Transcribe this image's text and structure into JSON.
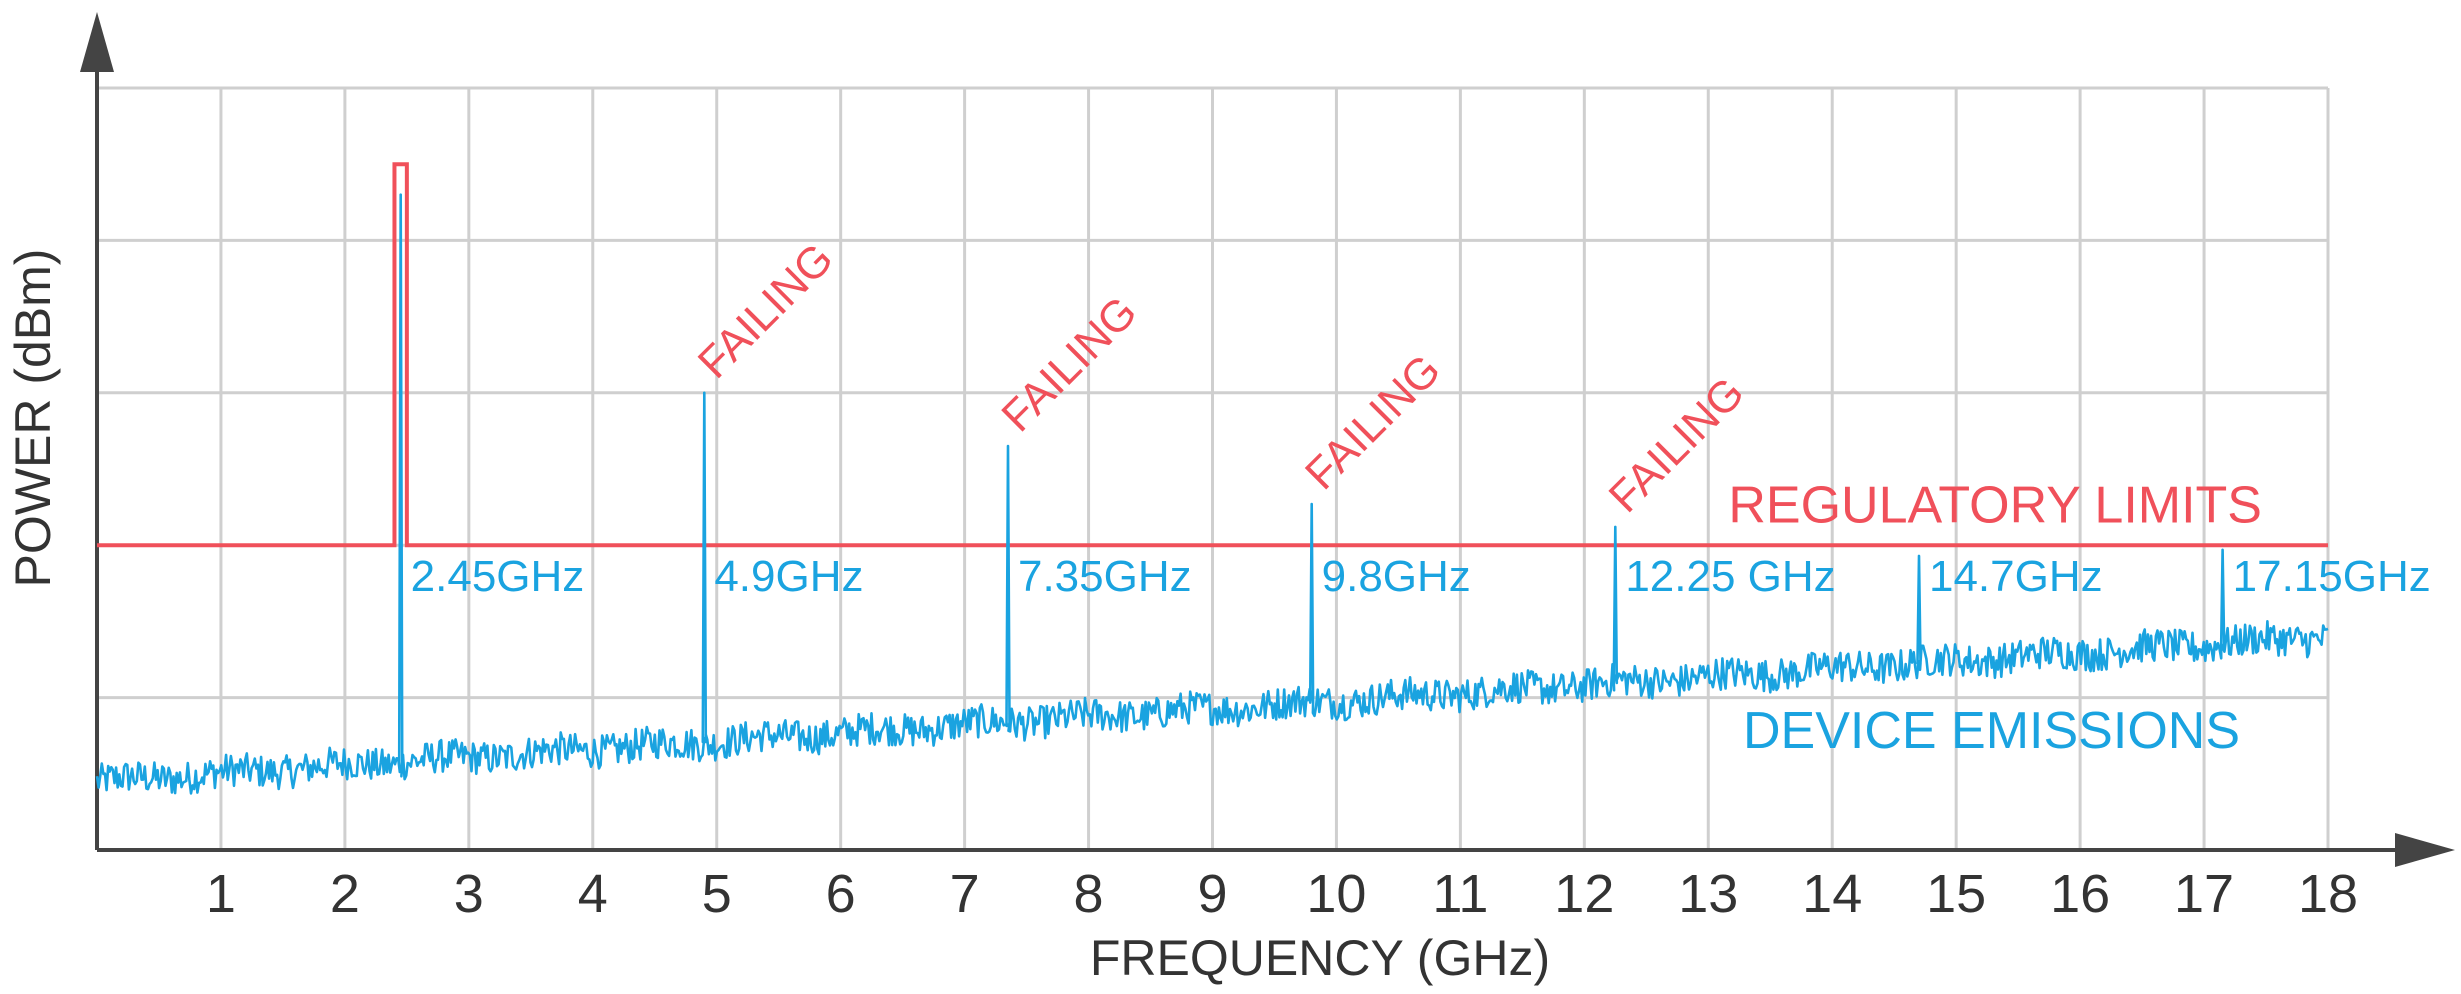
{
  "chart_data": {
    "type": "line",
    "title": "",
    "xlabel": "FREQUENCY (GHz)",
    "ylabel": "POWER (dBm)",
    "xlim": [
      0,
      18
    ],
    "ylim": [
      0,
      5
    ],
    "x_ticks": [
      "1",
      "2",
      "3",
      "4",
      "5",
      "6",
      "7",
      "8",
      "9",
      "10",
      "11",
      "12",
      "13",
      "14",
      "15",
      "16",
      "17",
      "18"
    ],
    "grid": true,
    "colors": {
      "emissions": "#1aa3e0",
      "limits": "#f0505a",
      "grid": "#cfcfcf",
      "axis": "#444444"
    },
    "regulatory_limits": {
      "label": "REGULATORY LIMITS",
      "baseline": 2.0,
      "notch": {
        "x_start": 2.4,
        "x_end": 2.5,
        "y": 4.5
      }
    },
    "device_emissions": {
      "label": "DEVICE EMISSIONS",
      "noise_floor_start": 0.45,
      "noise_floor_end": 1.4,
      "peaks": [
        {
          "x": 2.45,
          "y": 4.3,
          "label": "2.45GHz",
          "failing": false
        },
        {
          "x": 4.9,
          "y": 3.0,
          "label": "4.9GHz",
          "failing": true
        },
        {
          "x": 7.35,
          "y": 2.65,
          "label": "7.35GHz",
          "failing": true
        },
        {
          "x": 9.8,
          "y": 2.27,
          "label": "9.8GHz",
          "failing": true
        },
        {
          "x": 12.25,
          "y": 2.12,
          "label": "12.25 GHz",
          "failing": true
        },
        {
          "x": 14.7,
          "y": 1.93,
          "label": "14.7GHz",
          "failing": false
        },
        {
          "x": 17.15,
          "y": 1.97,
          "label": "17.15GHz",
          "failing": false
        }
      ]
    },
    "failing_label": "FAILING"
  }
}
